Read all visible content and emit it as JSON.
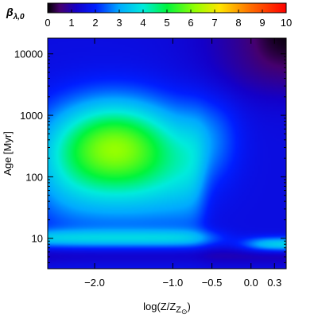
{
  "chart_data": {
    "type": "heatmap",
    "xlabel": "log(Z/Z",
    "xlabel_symbol": "⊙",
    "xlabel_close": ")",
    "ylabel": "Age",
    "ylabel_unit": "[Myr]",
    "y_scale": "log",
    "xlim": [
      -2.6,
      0.45
    ],
    "ylim": [
      3.2,
      18000
    ],
    "x_ticks": [
      -2.0,
      -1.0,
      -0.5,
      0.0,
      0.3
    ],
    "x_tick_labels": [
      "−2.0",
      "−1.0",
      "−0.5",
      "0.0",
      "0.3"
    ],
    "y_ticks": [
      10,
      100,
      1000,
      10000
    ],
    "y_tick_labels": [
      "10",
      "100",
      "1000",
      "10000"
    ],
    "colorbar": {
      "title_symbol": "β",
      "title_subscript": "λ,0",
      "range": [
        0,
        10
      ],
      "ticks": [
        0,
        1,
        2,
        3,
        4,
        5,
        6,
        7,
        8,
        9,
        10
      ],
      "tick_labels": [
        "0",
        "1",
        "2",
        "3",
        "4",
        "5",
        "6",
        "7",
        "8",
        "9",
        "10"
      ],
      "placement": "top"
    },
    "grid": false,
    "colormap": "rainbow",
    "features": [
      {
        "description": "broad green peak at low metallicity, 100-1000 Myr",
        "x": -1.8,
        "y": 400,
        "value": 4.7
      },
      {
        "description": "cyan plateau extending toward higher metallicity",
        "x": -1.0,
        "y": 200,
        "value": 3.6
      },
      {
        "description": "cyan band near 10 Myr",
        "x": -1.5,
        "y": 10,
        "value": 3.4
      },
      {
        "description": "cyan ridge toward highest metallicity at young ages",
        "x": 0.35,
        "y": 8,
        "value": 3.8
      },
      {
        "description": "dark blue valley at old ages, high metallicity",
        "x": 0.3,
        "y": 10000,
        "value": 0.6
      },
      {
        "description": "dark blue valley at youngest ages",
        "x": -1.0,
        "y": 5,
        "value": 1.2
      }
    ]
  }
}
